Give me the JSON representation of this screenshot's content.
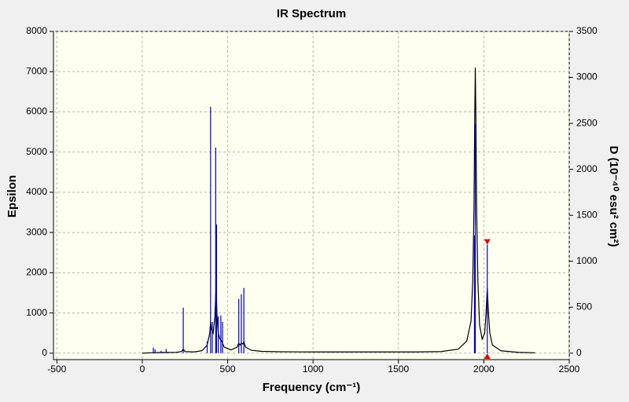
{
  "chart_data": {
    "type": "line",
    "title": "IR Spectrum",
    "x_label": "Frequency (cm⁻¹)",
    "y_label": "Epsilon",
    "y2_label": "D (10⁻⁴⁰ esu² cm²)",
    "xlim": [
      -520,
      2500
    ],
    "xticks": [
      -500,
      0,
      500,
      1000,
      1500,
      2000,
      2500
    ],
    "ylim": [
      -160,
      8000
    ],
    "yticks": [
      0,
      1000,
      2000,
      3000,
      4000,
      5000,
      6000,
      7000,
      8000
    ],
    "y2lim": [
      -70,
      3500
    ],
    "y2ticks": [
      0,
      500,
      1000,
      1500,
      2000,
      2500,
      3000,
      3500
    ],
    "grid": true,
    "series": [
      {
        "color": "#000000",
        "x": [
          0,
          50,
          100,
          200,
          230,
          240,
          250,
          300,
          350,
          380,
          395,
          400,
          405,
          415,
          425,
          432,
          438,
          445,
          455,
          465,
          480,
          520,
          555,
          565,
          572,
          580,
          588,
          595,
          605,
          640,
          700,
          800,
          1000,
          1200,
          1400,
          1600,
          1750,
          1850,
          1900,
          1925,
          1935,
          1942,
          1947,
          1950,
          1953,
          1958,
          1965,
          1975,
          1990,
          2005,
          2013,
          2020,
          2027,
          2035,
          2050,
          2100,
          2200,
          2300
        ],
        "values": [
          0,
          10,
          15,
          20,
          40,
          100,
          40,
          30,
          60,
          200,
          500,
          780,
          600,
          500,
          900,
          1660,
          900,
          500,
          350,
          300,
          150,
          80,
          150,
          250,
          200,
          250,
          230,
          280,
          150,
          70,
          45,
          35,
          30,
          30,
          30,
          30,
          40,
          100,
          300,
          800,
          1800,
          3500,
          6000,
          7100,
          6000,
          3500,
          1800,
          700,
          350,
          500,
          1000,
          1620,
          1000,
          500,
          200,
          60,
          20,
          10
        ]
      },
      {
        "color": "#0000c0",
        "axis": "y2",
        "style": "sticks",
        "x": [
          65,
          75,
          110,
          140,
          240,
          380,
          400,
          410,
          430,
          435,
          445,
          460,
          470,
          565,
          580,
          595,
          1945,
          1950,
          2020
        ],
        "values": [
          60,
          40,
          25,
          45,
          495,
          128,
          2680,
          340,
          2237,
          1400,
          400,
          410,
          340,
          590,
          640,
          710,
          1280,
          2494,
          1180
        ]
      }
    ],
    "selected_point": 18
  }
}
